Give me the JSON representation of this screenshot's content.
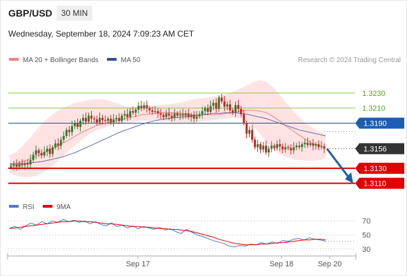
{
  "header": {
    "symbol": "GBP/USD",
    "timeframe": "30 MIN",
    "datetime": "Wednesday, September 18, 2024 7:09:23 AM CET"
  },
  "legend": {
    "ma20_label": "MA 20 + Bollinger Bands",
    "ma50_label": "MA 50",
    "credit": "Research © 2024 Trading Central",
    "rsi_label": "RSI",
    "rsi_ma_label": "9MA"
  },
  "colors": {
    "ma20": "#f08080",
    "ma50": "#5a6fa8",
    "bollinger_fill": "#ffd9d9",
    "bull_candle": "#2e7d32",
    "bear_candle": "#c62828",
    "resistance": "#8bc34a",
    "pivot": "#1a5fb4",
    "support": "#e00000",
    "current": "#333333",
    "arrow": "#1f5fa8",
    "rsi": "#4a7bd0",
    "rsi_ma": "#e00000"
  },
  "chart_data": [
    {
      "type": "candlestick",
      "title": "GBP/USD 30 MIN",
      "ylim": [
        1.3095,
        1.3262
      ],
      "x_ticks": [
        "Sep 17",
        "Sep 18",
        "Sep 20"
      ],
      "levels": [
        {
          "value": 1.323,
          "label": "1.3230",
          "kind": "resistance"
        },
        {
          "value": 1.321,
          "label": "1.3210",
          "kind": "resistance"
        },
        {
          "value": 1.319,
          "label": "1.3190",
          "kind": "pivot"
        },
        {
          "value": 1.3156,
          "label": "1.3156",
          "kind": "current"
        },
        {
          "value": 1.313,
          "label": "1.3130",
          "kind": "support"
        },
        {
          "value": 1.311,
          "label": "1.3110",
          "kind": "support"
        }
      ],
      "closes": [
        1.3133,
        1.3135,
        1.3132,
        1.3136,
        1.3134,
        1.3137,
        1.3135,
        1.3141,
        1.3148,
        1.3154,
        1.315,
        1.3147,
        1.3152,
        1.3156,
        1.3149,
        1.3158,
        1.3163,
        1.316,
        1.3168,
        1.3173,
        1.3181,
        1.3178,
        1.3186,
        1.319,
        1.3185,
        1.3193,
        1.3197,
        1.3192,
        1.32,
        1.3196,
        1.3195,
        1.3191,
        1.3197,
        1.3194,
        1.3193,
        1.3196,
        1.3191,
        1.3195,
        1.3197,
        1.3193,
        1.32,
        1.3202,
        1.3198,
        1.3206,
        1.3204,
        1.3208,
        1.3213,
        1.321,
        1.3214,
        1.321,
        1.3207,
        1.3205,
        1.3206,
        1.3203,
        1.3201,
        1.3198,
        1.3203,
        1.32,
        1.3197,
        1.3203,
        1.32,
        1.3202,
        1.32,
        1.3203,
        1.3198,
        1.3201,
        1.3196,
        1.3199,
        1.3202,
        1.3206,
        1.321,
        1.3205,
        1.3213,
        1.3217,
        1.3209,
        1.3224,
        1.3219,
        1.3212,
        1.3215,
        1.3207,
        1.3204,
        1.3214,
        1.3209,
        1.3202,
        1.319,
        1.3176,
        1.3181,
        1.3168,
        1.3158,
        1.3162,
        1.3155,
        1.316,
        1.3151,
        1.3156,
        1.316,
        1.3157,
        1.3162,
        1.3159,
        1.3155,
        1.3158,
        1.3157,
        1.3154,
        1.3158,
        1.316,
        1.3158,
        1.3162,
        1.3164,
        1.3161,
        1.3163,
        1.316,
        1.3162,
        1.3158,
        1.3159,
        1.3156
      ],
      "ma20": [
        1.3134,
        1.3136,
        1.3139,
        1.3142,
        1.3146,
        1.315,
        1.3154,
        1.3158,
        1.3163,
        1.3168,
        1.3173,
        1.3178,
        1.3182,
        1.3186,
        1.3189,
        1.3191,
        1.3193,
        1.3195,
        1.3197,
        1.3199,
        1.3201,
        1.3202,
        1.3203,
        1.3204,
        1.3204,
        1.3204,
        1.3203,
        1.3202,
        1.3201,
        1.3201,
        1.3201,
        1.3201,
        1.3202,
        1.3203,
        1.3204,
        1.3206,
        1.3207,
        1.3207,
        1.3206,
        1.3204,
        1.3199,
        1.3193,
        1.3186,
        1.318,
        1.3174,
        1.3168,
        1.3163,
        1.316,
        1.3158
      ],
      "bb_upper": [
        1.3147,
        1.3152,
        1.316,
        1.317,
        1.318,
        1.319,
        1.3198,
        1.3205,
        1.321,
        1.3214,
        1.3217,
        1.3219,
        1.3221,
        1.3222,
        1.3222,
        1.322,
        1.3217,
        1.3214,
        1.3212,
        1.3211,
        1.3211,
        1.3212,
        1.3213,
        1.3214,
        1.3215,
        1.3216,
        1.3218,
        1.322,
        1.3222,
        1.3223,
        1.3224,
        1.3225,
        1.3227,
        1.3229,
        1.3232,
        1.3236,
        1.324,
        1.3245,
        1.3247,
        1.3245,
        1.3238,
        1.3228,
        1.3217,
        1.3207,
        1.3198,
        1.319,
        1.3184,
        1.3179,
        1.3176
      ],
      "bb_lower": [
        1.3123,
        1.312,
        1.3118,
        1.3118,
        1.312,
        1.3124,
        1.313,
        1.3137,
        1.3145,
        1.3153,
        1.3161,
        1.3168,
        1.3175,
        1.318,
        1.3183,
        1.3186,
        1.3188,
        1.319,
        1.3191,
        1.3192,
        1.3193,
        1.3193,
        1.3193,
        1.3192,
        1.3192,
        1.3191,
        1.3191,
        1.3191,
        1.3191,
        1.3192,
        1.3193,
        1.3194,
        1.3195,
        1.3196,
        1.3197,
        1.3196,
        1.3193,
        1.3186,
        1.3176,
        1.3165,
        1.3156,
        1.3149,
        1.3145,
        1.3142,
        1.3141,
        1.314,
        1.314,
        1.3141,
        1.3142
      ],
      "ma50": [
        1.3136,
        1.3136,
        1.3136,
        1.3137,
        1.3138,
        1.3139,
        1.3141,
        1.3143,
        1.3145,
        1.3148,
        1.3151,
        1.3155,
        1.3159,
        1.3163,
        1.3167,
        1.3171,
        1.3175,
        1.3179,
        1.3182,
        1.3185,
        1.3188,
        1.3191,
        1.3193,
        1.3195,
        1.3196,
        1.3197,
        1.3198,
        1.3199,
        1.32,
        1.3201,
        1.3202,
        1.3203,
        1.3203,
        1.3204,
        1.3204,
        1.3203,
        1.3202,
        1.32,
        1.3198,
        1.3196,
        1.3193,
        1.319,
        1.3187,
        1.3184,
        1.3181,
        1.3179,
        1.3177,
        1.3175,
        1.3173
      ]
    },
    {
      "type": "line",
      "title": "RSI",
      "ylim": [
        25,
        80
      ],
      "y_ticks": [
        70,
        50,
        30
      ],
      "series": [
        {
          "name": "RSI",
          "values": [
            60,
            62,
            58,
            63,
            67,
            64,
            69,
            66,
            70,
            68,
            72,
            69,
            71,
            68,
            70,
            66,
            69,
            65,
            63,
            67,
            62,
            64,
            60,
            63,
            59,
            62,
            60,
            58,
            61,
            57,
            59,
            55,
            52,
            58,
            54,
            50,
            48,
            45,
            42,
            40,
            38,
            34,
            33,
            35,
            34,
            37,
            36,
            39,
            37,
            40,
            38,
            42,
            41,
            44,
            45,
            43,
            46,
            44,
            43,
            41
          ]
        },
        {
          "name": "9MA",
          "values": [
            59,
            60,
            61,
            62,
            63,
            64,
            65,
            66,
            67,
            68,
            69,
            69,
            70,
            70,
            69,
            69,
            68,
            67,
            66,
            66,
            65,
            64,
            63,
            62,
            62,
            61,
            61,
            60,
            59,
            59,
            58,
            58,
            57,
            56,
            55,
            53,
            51,
            49,
            47,
            44,
            42,
            40,
            38,
            37,
            36,
            36,
            36,
            37,
            37,
            38,
            39,
            39,
            40,
            41,
            42,
            43,
            43,
            44,
            44,
            43
          ]
        }
      ]
    }
  ]
}
